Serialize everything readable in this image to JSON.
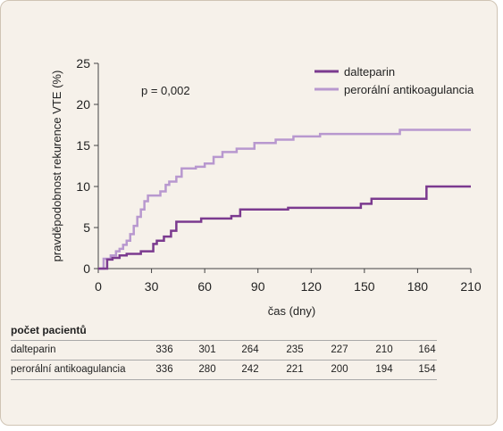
{
  "chart_data": {
    "type": "line",
    "step": true,
    "xlabel": "čas (dny)",
    "ylabel": "pravděpodobnost rekurence VTE (%)",
    "xlim": [
      0,
      210
    ],
    "ylim": [
      0,
      25
    ],
    "xticks": [
      0,
      30,
      60,
      90,
      120,
      150,
      180,
      210
    ],
    "yticks": [
      0,
      5,
      10,
      15,
      20,
      25
    ],
    "grid": false,
    "legend": "top-right",
    "annotation": "p = 0,002",
    "series": [
      {
        "name": "dalteparin",
        "color": "#7b3a8f",
        "points": [
          [
            0,
            0
          ],
          [
            3,
            0
          ],
          [
            5,
            1.1
          ],
          [
            8,
            1.3
          ],
          [
            12,
            1.6
          ],
          [
            16,
            1.8
          ],
          [
            24,
            2.1
          ],
          [
            31,
            3.0
          ],
          [
            33,
            3.4
          ],
          [
            37,
            3.9
          ],
          [
            41,
            4.6
          ],
          [
            44,
            5.7
          ],
          [
            58,
            6.1
          ],
          [
            75,
            6.4
          ],
          [
            80,
            7.2
          ],
          [
            107,
            7.4
          ],
          [
            148,
            7.9
          ],
          [
            154,
            8.5
          ],
          [
            185,
            10.0
          ],
          [
            210,
            10.0
          ]
        ]
      },
      {
        "name": "perorální antikoagulancia",
        "color": "#b898cf",
        "points": [
          [
            0,
            0
          ],
          [
            3,
            1.2
          ],
          [
            7,
            1.6
          ],
          [
            10,
            2.1
          ],
          [
            12,
            2.4
          ],
          [
            14,
            2.9
          ],
          [
            16,
            3.4
          ],
          [
            18,
            4.2
          ],
          [
            20,
            5.2
          ],
          [
            22,
            6.3
          ],
          [
            24,
            7.2
          ],
          [
            26,
            8.2
          ],
          [
            28,
            8.9
          ],
          [
            35,
            9.4
          ],
          [
            38,
            10.2
          ],
          [
            40,
            10.6
          ],
          [
            44,
            11.2
          ],
          [
            47,
            12.2
          ],
          [
            55,
            12.4
          ],
          [
            60,
            12.8
          ],
          [
            65,
            13.6
          ],
          [
            70,
            14.2
          ],
          [
            78,
            14.6
          ],
          [
            88,
            15.3
          ],
          [
            100,
            15.7
          ],
          [
            110,
            16.1
          ],
          [
            125,
            16.4
          ],
          [
            170,
            16.9
          ],
          [
            210,
            16.9
          ]
        ]
      }
    ]
  },
  "risk_table": {
    "title": "počet pacientů",
    "rows": [
      {
        "label": "dalteparin",
        "values": [
          "336",
          "301",
          "264",
          "235",
          "227",
          "210",
          "164"
        ]
      },
      {
        "label": "perorální antikoagulancia",
        "values": [
          "336",
          "280",
          "242",
          "221",
          "200",
          "194",
          "154"
        ]
      }
    ]
  }
}
